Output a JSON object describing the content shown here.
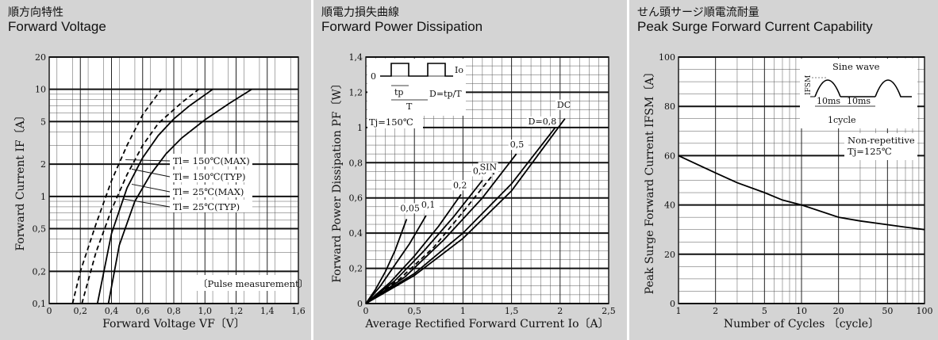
{
  "panels": [
    {
      "title_jp": "順方向特性",
      "title_en": "Forward Voltage"
    },
    {
      "title_jp": "順電力損失曲線",
      "title_en": "Forward Power Dissipation"
    },
    {
      "title_jp": "せん頭サージ順電流耐量",
      "title_en": "Peak Surge Forward Current Capability"
    }
  ],
  "chart_data": [
    {
      "type": "line",
      "xlabel": "Forward Voltage  VF〔V〕",
      "ylabel": "Forward Current  IF〔A〕",
      "xlim": [
        0,
        1.6
      ],
      "ylim": [
        0.1,
        20
      ],
      "yscale": "log",
      "x_ticks": [
        "0",
        "0,2",
        "0,4",
        "0,6",
        "0,8",
        "1,0",
        "1,2",
        "1,4",
        "1,6"
      ],
      "x_tick_values": [
        0,
        0.2,
        0.4,
        0.6,
        0.8,
        1.0,
        1.2,
        1.4,
        1.6
      ],
      "y_ticks": [
        "0,1",
        "0,2",
        "0,5",
        "1",
        "2",
        "5",
        "10",
        "20"
      ],
      "y_tick_values": [
        0.1,
        0.2,
        0.5,
        1,
        2,
        5,
        10,
        20
      ],
      "note": "〔Pulse measurement〕",
      "series": [
        {
          "name": "Tl= 150℃(MAX)",
          "dashed": true,
          "x": [
            0.15,
            0.2,
            0.3,
            0.4,
            0.5,
            0.6,
            0.72
          ],
          "y": [
            0.1,
            0.2,
            0.55,
            1.4,
            3.0,
            5.8,
            10
          ]
        },
        {
          "name": "Tl= 150℃(TYP)",
          "dashed": true,
          "x": [
            0.21,
            0.3,
            0.4,
            0.5,
            0.6,
            0.7,
            0.85,
            0.96
          ],
          "y": [
            0.1,
            0.3,
            0.75,
            1.6,
            3.0,
            4.8,
            7.5,
            10
          ]
        },
        {
          "name": "Tl=  25℃(MAX)",
          "dashed": false,
          "x": [
            0.31,
            0.4,
            0.5,
            0.6,
            0.7,
            0.8,
            0.9,
            1.05
          ],
          "y": [
            0.1,
            0.45,
            1.2,
            2.3,
            3.7,
            5.3,
            7.0,
            10
          ]
        },
        {
          "name": "Tl=  25℃(TYP)",
          "dashed": false,
          "x": [
            0.38,
            0.45,
            0.55,
            0.65,
            0.75,
            0.85,
            1.0,
            1.15,
            1.3
          ],
          "y": [
            0.1,
            0.35,
            0.9,
            1.6,
            2.5,
            3.5,
            5.2,
            7.3,
            10
          ]
        }
      ]
    },
    {
      "type": "line",
      "xlabel": "Average Rectified Forward Current  Io〔A〕",
      "ylabel": "Forward Power Dissipation  PF〔W〕",
      "xlim": [
        0,
        2.5
      ],
      "ylim": [
        0,
        1.4
      ],
      "x_ticks": [
        "0",
        "0,5",
        "1",
        "1,5",
        "2",
        "2,5"
      ],
      "x_tick_values": [
        0,
        0.5,
        1,
        1.5,
        2,
        2.5
      ],
      "y_ticks": [
        "0",
        "0,2",
        "0,4",
        "0,6",
        "0,8",
        "1",
        "1,2",
        "1,4"
      ],
      "y_tick_values": [
        0,
        0.2,
        0.4,
        0.6,
        0.8,
        1.0,
        1.2,
        1.4
      ],
      "condition": "Tj=150℃",
      "inset": {
        "io_label": "Io",
        "zero_label": "0",
        "tp_label": "tp",
        "t_label": "T",
        "d_label": "D=tp/T"
      },
      "series": [
        {
          "name": "0,05",
          "label": "0,05",
          "x": [
            0,
            0.1,
            0.2,
            0.3,
            0.42
          ],
          "y": [
            0,
            0.08,
            0.18,
            0.3,
            0.48
          ]
        },
        {
          "name": "0,1",
          "label": "0,1",
          "x": [
            0,
            0.15,
            0.3,
            0.45,
            0.62
          ],
          "y": [
            0,
            0.1,
            0.22,
            0.34,
            0.5
          ]
        },
        {
          "name": "0,2",
          "label": "0,2",
          "x": [
            0,
            0.25,
            0.5,
            0.75,
            0.98
          ],
          "y": [
            0,
            0.12,
            0.27,
            0.44,
            0.62
          ]
        },
        {
          "name": "0,3",
          "label": "0,3",
          "x": [
            0,
            0.3,
            0.6,
            0.9,
            1.2
          ],
          "y": [
            0,
            0.13,
            0.3,
            0.49,
            0.7
          ]
        },
        {
          "name": "SIN",
          "label": "SIN",
          "dashed": true,
          "x": [
            0,
            0.35,
            0.7,
            1.0,
            1.32
          ],
          "y": [
            0,
            0.14,
            0.32,
            0.52,
            0.74
          ]
        },
        {
          "name": "0,5",
          "label": "0,5",
          "x": [
            0,
            0.4,
            0.8,
            1.2,
            1.55
          ],
          "y": [
            0,
            0.15,
            0.36,
            0.6,
            0.85
          ]
        },
        {
          "name": "D=0,8",
          "label": "D=0,8",
          "x": [
            0,
            0.5,
            1.0,
            1.5,
            1.95
          ],
          "y": [
            0,
            0.17,
            0.4,
            0.68,
            1.0
          ]
        },
        {
          "name": "DC",
          "label": "DC",
          "x": [
            0,
            0.5,
            1.0,
            1.5,
            2.05
          ],
          "y": [
            0,
            0.16,
            0.37,
            0.64,
            1.05
          ]
        }
      ]
    },
    {
      "type": "line",
      "xlabel": "Number of Cycles 〔cycle〕",
      "ylabel": "Peak Surge Forward Current  IFSM〔A〕",
      "xlim": [
        1,
        100
      ],
      "xscale": "log",
      "ylim": [
        0,
        100
      ],
      "x_ticks": [
        "1",
        "2",
        "5",
        "10",
        "20",
        "50",
        "100"
      ],
      "x_tick_values": [
        1,
        2,
        5,
        10,
        20,
        50,
        100
      ],
      "y_ticks": [
        "0",
        "20",
        "40",
        "60",
        "80",
        "100"
      ],
      "y_tick_values": [
        0,
        20,
        40,
        60,
        80,
        100
      ],
      "condition_lines": [
        "Non-repetitive",
        "Tj=125℃"
      ],
      "inset": {
        "title": "Sine wave",
        "ifsm_label": "IFSM",
        "t1_label": "10ms",
        "t2_label": "10ms",
        "cycle_label": "1cycle"
      },
      "series": [
        {
          "name": "IFSM",
          "x": [
            1,
            2,
            3,
            5,
            7,
            10,
            20,
            30,
            50,
            70,
            100
          ],
          "y": [
            60,
            53,
            49,
            45,
            42,
            40,
            35,
            33.5,
            32,
            31,
            30
          ]
        }
      ]
    }
  ]
}
